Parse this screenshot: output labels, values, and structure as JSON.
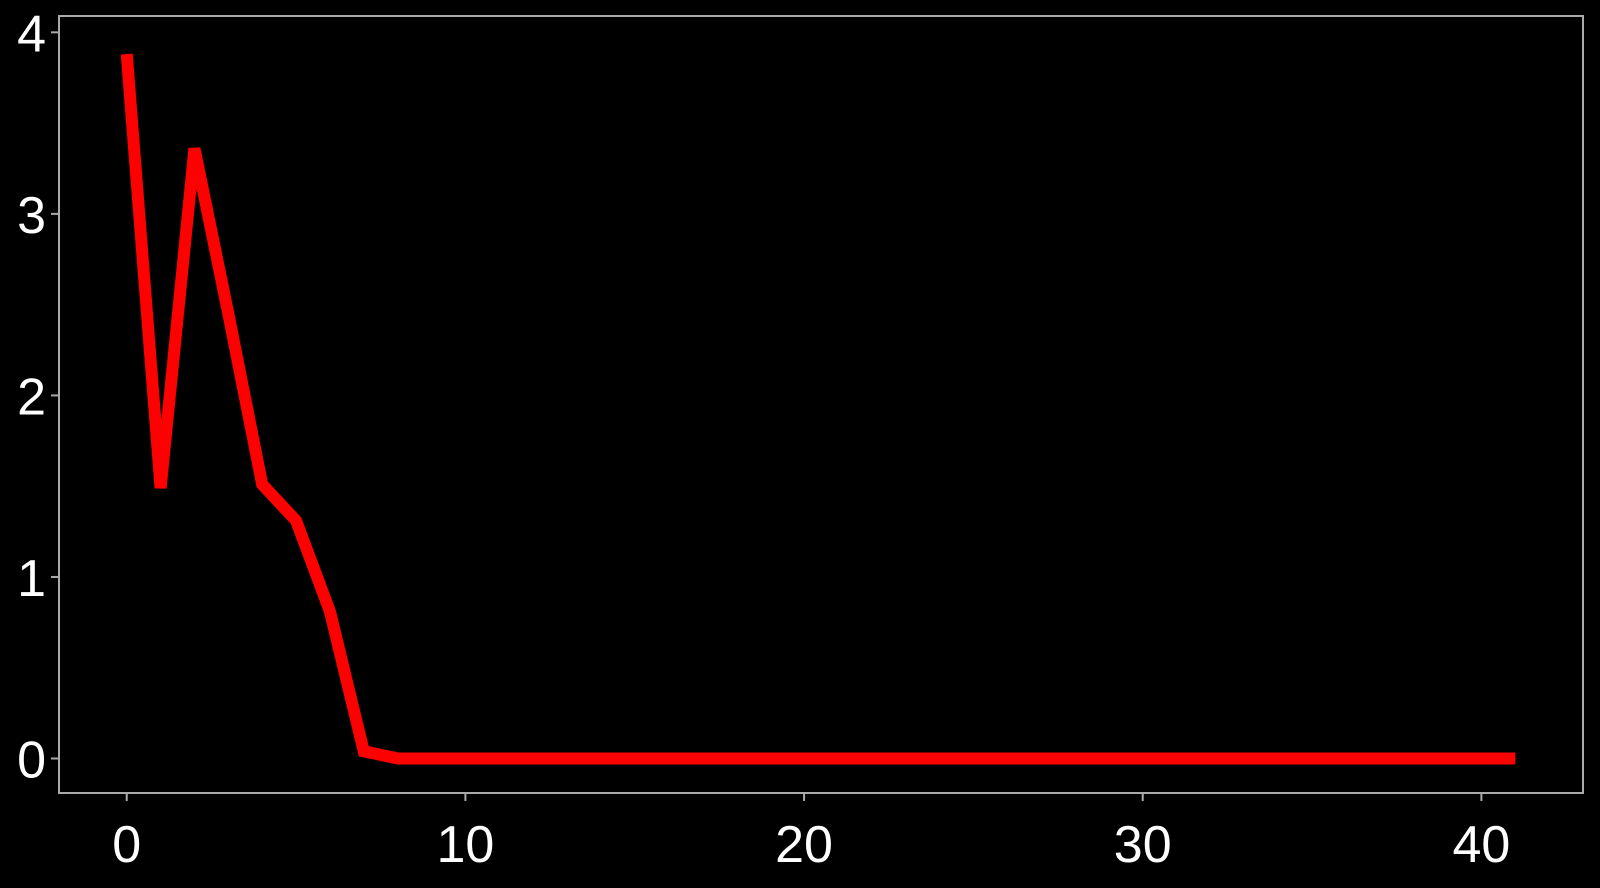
{
  "chart_data": {
    "type": "line",
    "title": "",
    "xlabel": "",
    "ylabel": "",
    "xlim": [
      -2,
      43
    ],
    "ylim": [
      -0.19,
      4.09
    ],
    "x_ticks": [
      0,
      10,
      20,
      30,
      40
    ],
    "y_ticks": [
      0,
      1,
      2,
      3,
      4
    ],
    "x_tick_labels": [
      "0",
      "10",
      "20",
      "30",
      "40"
    ],
    "y_tick_labels": [
      "0",
      "1",
      "2",
      "3",
      "4"
    ],
    "grid": false,
    "legend": "none",
    "background_color": "#000000",
    "axis_color": "#aaaaaa",
    "text_color": "#ffffff",
    "series": [
      {
        "color": "#ff0000",
        "x": [
          0,
          1,
          2,
          3,
          4,
          5,
          6,
          7,
          8,
          9,
          10,
          11,
          12,
          13,
          14,
          15,
          16,
          17,
          18,
          19,
          20,
          21,
          22,
          23,
          24,
          25,
          26,
          27,
          28,
          29,
          30,
          31,
          32,
          33,
          34,
          35,
          36,
          37,
          38,
          39,
          40,
          41
        ],
        "y": [
          3.88,
          1.49,
          3.36,
          2.45,
          1.51,
          1.31,
          0.81,
          0.04,
          0.0,
          0.0,
          0.0,
          0.0,
          0.0,
          0.0,
          0.0,
          0.0,
          0.0,
          0.0,
          0.0,
          0.0,
          0.0,
          0.0,
          0.0,
          0.0,
          0.0,
          0.0,
          0.0,
          0.0,
          0.0,
          0.0,
          0.0,
          0.0,
          0.0,
          0.0,
          0.0,
          0.0,
          0.0,
          0.0,
          0.0,
          0.0,
          0.0,
          0.0
        ]
      }
    ]
  }
}
